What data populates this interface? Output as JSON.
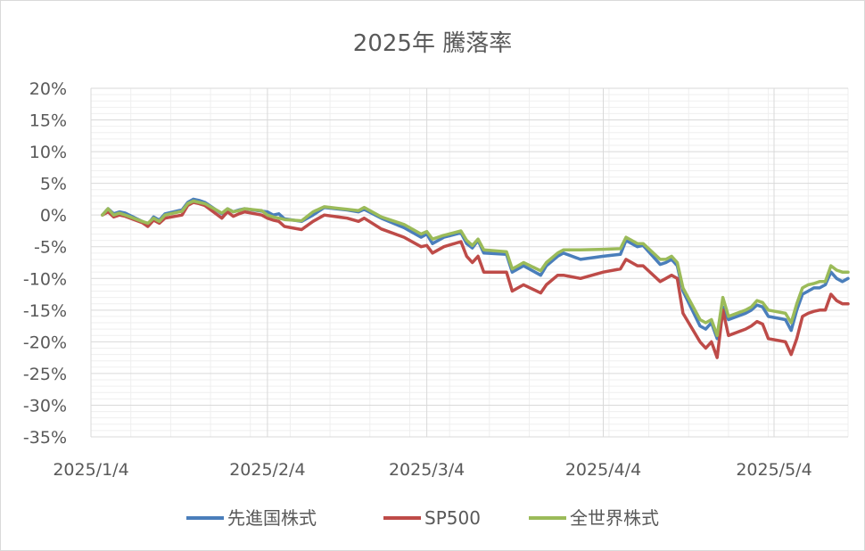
{
  "chart_data": {
    "type": "line",
    "title": "2025年 騰落率",
    "xlabel": "",
    "ylabel": "",
    "ylim": [
      -35,
      20
    ],
    "y_ticks": [
      "20%",
      "15%",
      "10%",
      "5%",
      "0%",
      "-5%",
      "-10%",
      "-15%",
      "-20%",
      "-25%",
      "-30%",
      "-35%"
    ],
    "y_tick_values": [
      20,
      15,
      10,
      5,
      0,
      -5,
      -10,
      -15,
      -20,
      -25,
      -30,
      -35
    ],
    "x_ticks": [
      "2025/1/4",
      "2025/2/4",
      "2025/3/4",
      "2025/4/4",
      "2025/5/4"
    ],
    "x_tick_dates": [
      "2025-01-04",
      "2025-02-04",
      "2025-03-04",
      "2025-04-04",
      "2025-05-04"
    ],
    "x_range": [
      "2025-01-04",
      "2025-05-17"
    ],
    "grid": true,
    "legend_position": "bottom",
    "series": [
      {
        "name": "先進国株式",
        "color": "#4a7ebb",
        "points": [
          [
            "2025-01-06",
            0.0
          ],
          [
            "2025-01-07",
            1.0
          ],
          [
            "2025-01-08",
            0.2
          ],
          [
            "2025-01-09",
            0.5
          ],
          [
            "2025-01-10",
            0.3
          ],
          [
            "2025-01-13",
            -1.0
          ],
          [
            "2025-01-14",
            -1.5
          ],
          [
            "2025-01-15",
            -0.3
          ],
          [
            "2025-01-16",
            -0.8
          ],
          [
            "2025-01-17",
            0.2
          ],
          [
            "2025-01-20",
            0.8
          ],
          [
            "2025-01-21",
            2.0
          ],
          [
            "2025-01-22",
            2.5
          ],
          [
            "2025-01-23",
            2.3
          ],
          [
            "2025-01-24",
            2.0
          ],
          [
            "2025-01-27",
            0.2
          ],
          [
            "2025-01-28",
            1.0
          ],
          [
            "2025-01-29",
            0.5
          ],
          [
            "2025-01-30",
            0.8
          ],
          [
            "2025-01-31",
            1.0
          ],
          [
            "2025-02-03",
            0.6
          ],
          [
            "2025-02-04",
            0.5
          ],
          [
            "2025-02-05",
            0.0
          ],
          [
            "2025-02-06",
            0.2
          ],
          [
            "2025-02-07",
            -0.6
          ],
          [
            "2025-02-10",
            -1.0
          ],
          [
            "2025-02-12",
            0.0
          ],
          [
            "2025-02-14",
            1.2
          ],
          [
            "2025-02-18",
            0.8
          ],
          [
            "2025-02-20",
            0.5
          ],
          [
            "2025-02-21",
            0.9
          ],
          [
            "2025-02-24",
            -0.5
          ],
          [
            "2025-02-28",
            -2.0
          ],
          [
            "2025-03-03",
            -3.5
          ],
          [
            "2025-03-04",
            -3.0
          ],
          [
            "2025-03-05",
            -4.5
          ],
          [
            "2025-03-07",
            -3.5
          ],
          [
            "2025-03-10",
            -2.8
          ],
          [
            "2025-03-11",
            -4.5
          ],
          [
            "2025-03-12",
            -5.2
          ],
          [
            "2025-03-13",
            -4.0
          ],
          [
            "2025-03-14",
            -6.0
          ],
          [
            "2025-03-18",
            -6.2
          ],
          [
            "2025-03-19",
            -9.0
          ],
          [
            "2025-03-20",
            -8.5
          ],
          [
            "2025-03-21",
            -8.0
          ],
          [
            "2025-03-24",
            -9.5
          ],
          [
            "2025-03-25",
            -8.0
          ],
          [
            "2025-03-27",
            -6.5
          ],
          [
            "2025-03-28",
            -6.0
          ],
          [
            "2025-03-31",
            -7.0
          ],
          [
            "2025-04-04",
            -6.5
          ],
          [
            "2025-04-07",
            -6.2
          ],
          [
            "2025-04-08",
            -4.0
          ],
          [
            "2025-04-09",
            -4.5
          ],
          [
            "2025-04-10",
            -5.0
          ],
          [
            "2025-04-11",
            -4.8
          ],
          [
            "2025-04-14",
            -7.8
          ],
          [
            "2025-04-15",
            -7.5
          ],
          [
            "2025-04-16",
            -7.0
          ],
          [
            "2025-04-17",
            -8.0
          ],
          [
            "2025-04-18",
            -12.0
          ],
          [
            "2025-04-21",
            -17.5
          ],
          [
            "2025-04-22",
            -18.0
          ],
          [
            "2025-04-23",
            -17.0
          ],
          [
            "2025-04-24",
            -19.5
          ],
          [
            "2025-04-25",
            -14.5
          ],
          [
            "2025-04-26",
            -16.5
          ],
          [
            "2025-04-29",
            -15.5
          ],
          [
            "2025-04-30",
            -15.0
          ],
          [
            "2025-05-01",
            -14.2
          ],
          [
            "2025-05-02",
            -14.5
          ],
          [
            "2025-05-03",
            -16.0
          ],
          [
            "2025-05-06",
            -16.5
          ],
          [
            "2025-05-07",
            -18.2
          ],
          [
            "2025-05-08",
            -15.0
          ],
          [
            "2025-05-09",
            -12.5
          ],
          [
            "2025-05-10",
            -12.0
          ],
          [
            "2025-05-11",
            -11.5
          ],
          [
            "2025-05-12",
            -11.5
          ],
          [
            "2025-05-13",
            -11.0
          ],
          [
            "2025-05-14",
            -9.0
          ],
          [
            "2025-05-15",
            -10.0
          ],
          [
            "2025-05-16",
            -10.5
          ],
          [
            "2025-05-17",
            -10.0
          ]
        ]
      },
      {
        "name": "SP500",
        "color": "#be4b48",
        "points": [
          [
            "2025-01-06",
            0.0
          ],
          [
            "2025-01-07",
            0.5
          ],
          [
            "2025-01-08",
            -0.3
          ],
          [
            "2025-01-09",
            0.0
          ],
          [
            "2025-01-10",
            -0.2
          ],
          [
            "2025-01-13",
            -1.2
          ],
          [
            "2025-01-14",
            -1.8
          ],
          [
            "2025-01-15",
            -0.8
          ],
          [
            "2025-01-16",
            -1.3
          ],
          [
            "2025-01-17",
            -0.5
          ],
          [
            "2025-01-20",
            0.0
          ],
          [
            "2025-01-21",
            1.5
          ],
          [
            "2025-01-22",
            2.0
          ],
          [
            "2025-01-23",
            1.8
          ],
          [
            "2025-01-24",
            1.5
          ],
          [
            "2025-01-27",
            -0.5
          ],
          [
            "2025-01-28",
            0.5
          ],
          [
            "2025-01-29",
            -0.2
          ],
          [
            "2025-01-30",
            0.2
          ],
          [
            "2025-01-31",
            0.5
          ],
          [
            "2025-02-03",
            0.0
          ],
          [
            "2025-02-04",
            -0.5
          ],
          [
            "2025-02-05",
            -0.8
          ],
          [
            "2025-02-06",
            -1.0
          ],
          [
            "2025-02-07",
            -1.8
          ],
          [
            "2025-02-10",
            -2.3
          ],
          [
            "2025-02-12",
            -1.0
          ],
          [
            "2025-02-14",
            0.0
          ],
          [
            "2025-02-18",
            -0.5
          ],
          [
            "2025-02-20",
            -1.0
          ],
          [
            "2025-02-21",
            -0.5
          ],
          [
            "2025-02-24",
            -2.2
          ],
          [
            "2025-02-28",
            -3.5
          ],
          [
            "2025-03-03",
            -5.0
          ],
          [
            "2025-03-04",
            -4.8
          ],
          [
            "2025-03-05",
            -6.0
          ],
          [
            "2025-03-07",
            -5.0
          ],
          [
            "2025-03-10",
            -4.2
          ],
          [
            "2025-03-11",
            -6.5
          ],
          [
            "2025-03-12",
            -7.5
          ],
          [
            "2025-03-13",
            -6.5
          ],
          [
            "2025-03-14",
            -9.0
          ],
          [
            "2025-03-18",
            -9.0
          ],
          [
            "2025-03-19",
            -12.0
          ],
          [
            "2025-03-20",
            -11.5
          ],
          [
            "2025-03-21",
            -11.0
          ],
          [
            "2025-03-24",
            -12.3
          ],
          [
            "2025-03-25",
            -11.0
          ],
          [
            "2025-03-27",
            -9.5
          ],
          [
            "2025-03-28",
            -9.5
          ],
          [
            "2025-03-31",
            -10.0
          ],
          [
            "2025-04-04",
            -9.0
          ],
          [
            "2025-04-07",
            -8.5
          ],
          [
            "2025-04-08",
            -7.0
          ],
          [
            "2025-04-09",
            -7.5
          ],
          [
            "2025-04-10",
            -8.0
          ],
          [
            "2025-04-11",
            -8.0
          ],
          [
            "2025-04-14",
            -10.5
          ],
          [
            "2025-04-15",
            -10.0
          ],
          [
            "2025-04-16",
            -9.5
          ],
          [
            "2025-04-17",
            -10.0
          ],
          [
            "2025-04-18",
            -15.5
          ],
          [
            "2025-04-21",
            -20.0
          ],
          [
            "2025-04-22",
            -21.0
          ],
          [
            "2025-04-23",
            -20.0
          ],
          [
            "2025-04-24",
            -22.5
          ],
          [
            "2025-04-25",
            -15.0
          ],
          [
            "2025-04-26",
            -19.0
          ],
          [
            "2025-04-29",
            -18.0
          ],
          [
            "2025-04-30",
            -17.5
          ],
          [
            "2025-05-01",
            -16.8
          ],
          [
            "2025-05-02",
            -17.2
          ],
          [
            "2025-05-03",
            -19.5
          ],
          [
            "2025-05-06",
            -20.0
          ],
          [
            "2025-05-07",
            -22.0
          ],
          [
            "2025-05-08",
            -19.5
          ],
          [
            "2025-05-09",
            -16.0
          ],
          [
            "2025-05-10",
            -15.5
          ],
          [
            "2025-05-11",
            -15.2
          ],
          [
            "2025-05-12",
            -15.0
          ],
          [
            "2025-05-13",
            -15.0
          ],
          [
            "2025-05-14",
            -12.5
          ],
          [
            "2025-05-15",
            -13.5
          ],
          [
            "2025-05-16",
            -14.0
          ],
          [
            "2025-05-17",
            -14.0
          ]
        ]
      },
      {
        "name": "全世界株式",
        "color": "#9bbb59",
        "points": [
          [
            "2025-01-06",
            0.0
          ],
          [
            "2025-01-07",
            1.0
          ],
          [
            "2025-01-08",
            0.0
          ],
          [
            "2025-01-09",
            0.3
          ],
          [
            "2025-01-10",
            0.0
          ],
          [
            "2025-01-13",
            -1.0
          ],
          [
            "2025-01-14",
            -1.3
          ],
          [
            "2025-01-15",
            -0.5
          ],
          [
            "2025-01-16",
            -1.0
          ],
          [
            "2025-01-17",
            0.0
          ],
          [
            "2025-01-20",
            0.6
          ],
          [
            "2025-01-21",
            1.8
          ],
          [
            "2025-01-22",
            2.2
          ],
          [
            "2025-01-23",
            2.0
          ],
          [
            "2025-01-24",
            1.8
          ],
          [
            "2025-01-27",
            0.3
          ],
          [
            "2025-01-28",
            1.0
          ],
          [
            "2025-01-29",
            0.5
          ],
          [
            "2025-01-30",
            0.7
          ],
          [
            "2025-01-31",
            1.0
          ],
          [
            "2025-02-03",
            0.7
          ],
          [
            "2025-02-04",
            0.0
          ],
          [
            "2025-02-05",
            -0.3
          ],
          [
            "2025-02-06",
            -0.5
          ],
          [
            "2025-02-07",
            -0.7
          ],
          [
            "2025-02-10",
            -0.9
          ],
          [
            "2025-02-12",
            0.5
          ],
          [
            "2025-02-14",
            1.3
          ],
          [
            "2025-02-18",
            0.9
          ],
          [
            "2025-02-20",
            0.7
          ],
          [
            "2025-02-21",
            1.2
          ],
          [
            "2025-02-24",
            -0.3
          ],
          [
            "2025-02-28",
            -1.5
          ],
          [
            "2025-03-03",
            -3.0
          ],
          [
            "2025-03-04",
            -2.6
          ],
          [
            "2025-03-05",
            -3.8
          ],
          [
            "2025-03-07",
            -3.2
          ],
          [
            "2025-03-10",
            -2.5
          ],
          [
            "2025-03-11",
            -4.0
          ],
          [
            "2025-03-12",
            -4.8
          ],
          [
            "2025-03-13",
            -3.8
          ],
          [
            "2025-03-14",
            -5.5
          ],
          [
            "2025-03-18",
            -5.8
          ],
          [
            "2025-03-19",
            -8.5
          ],
          [
            "2025-03-20",
            -8.0
          ],
          [
            "2025-03-21",
            -7.5
          ],
          [
            "2025-03-24",
            -8.8
          ],
          [
            "2025-03-25",
            -7.5
          ],
          [
            "2025-03-27",
            -6.0
          ],
          [
            "2025-03-28",
            -5.5
          ],
          [
            "2025-03-31",
            -5.5
          ],
          [
            "2025-04-04",
            -5.4
          ],
          [
            "2025-04-07",
            -5.3
          ],
          [
            "2025-04-08",
            -3.5
          ],
          [
            "2025-04-09",
            -4.0
          ],
          [
            "2025-04-10",
            -4.5
          ],
          [
            "2025-04-11",
            -4.5
          ],
          [
            "2025-04-14",
            -7.0
          ],
          [
            "2025-04-15",
            -7.0
          ],
          [
            "2025-04-16",
            -6.5
          ],
          [
            "2025-04-17",
            -7.5
          ],
          [
            "2025-04-18",
            -11.5
          ],
          [
            "2025-04-21",
            -16.5
          ],
          [
            "2025-04-22",
            -17.0
          ],
          [
            "2025-04-23",
            -16.5
          ],
          [
            "2025-04-24",
            -19.0
          ],
          [
            "2025-04-25",
            -13.0
          ],
          [
            "2025-04-26",
            -16.0
          ],
          [
            "2025-04-29",
            -15.0
          ],
          [
            "2025-04-30",
            -14.5
          ],
          [
            "2025-05-01",
            -13.5
          ],
          [
            "2025-05-02",
            -13.8
          ],
          [
            "2025-05-03",
            -15.0
          ],
          [
            "2025-05-06",
            -15.5
          ],
          [
            "2025-05-07",
            -17.0
          ],
          [
            "2025-05-08",
            -14.0
          ],
          [
            "2025-05-09",
            -11.5
          ],
          [
            "2025-05-10",
            -11.0
          ],
          [
            "2025-05-11",
            -10.8
          ],
          [
            "2025-05-12",
            -10.5
          ],
          [
            "2025-05-13",
            -10.5
          ],
          [
            "2025-05-14",
            -8.0
          ],
          [
            "2025-05-15",
            -8.7
          ],
          [
            "2025-05-16",
            -9.0
          ],
          [
            "2025-05-17",
            -9.0
          ]
        ]
      }
    ]
  }
}
